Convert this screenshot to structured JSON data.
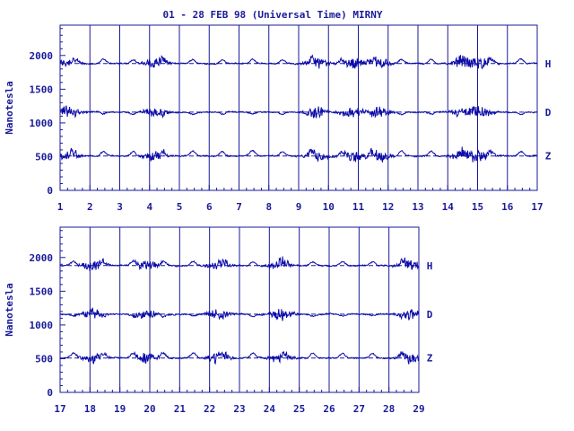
{
  "title": "01 - 28 FEB 98 (Universal Time) MIRNY",
  "colors": {
    "ink": "#1a1a9a",
    "trace": "#0a0aa8",
    "background": "#ffffff"
  },
  "chart_data": [
    {
      "type": "line",
      "ylabel": "Nanotesla",
      "ylim": [
        0,
        2450
      ],
      "y_ticks": [
        "0",
        "500",
        "1000",
        "1500",
        "2000"
      ],
      "x_ticks": [
        "1",
        "2",
        "3",
        "4",
        "5",
        "6",
        "7",
        "8",
        "9",
        "10",
        "11",
        "12",
        "13",
        "14",
        "15",
        "16",
        "17"
      ],
      "xlim": [
        1,
        17
      ],
      "grid": "vertical lines at each day",
      "series": [
        {
          "name": "H",
          "baseline": 1880
        },
        {
          "name": "D",
          "baseline": 1160
        },
        {
          "name": "Z",
          "baseline": 510
        }
      ]
    },
    {
      "type": "line",
      "ylabel": "Nanotesla",
      "ylim": [
        0,
        2450
      ],
      "y_ticks": [
        "0",
        "500",
        "1000",
        "1500",
        "2000"
      ],
      "x_ticks": [
        "17",
        "18",
        "19",
        "20",
        "21",
        "22",
        "23",
        "24",
        "25",
        "26",
        "27",
        "28",
        "29"
      ],
      "xlim": [
        17,
        29
      ],
      "grid": "vertical lines at each day",
      "series": [
        {
          "name": "H",
          "baseline": 1880
        },
        {
          "name": "D",
          "baseline": 1160
        },
        {
          "name": "Z",
          "baseline": 510
        }
      ]
    }
  ]
}
